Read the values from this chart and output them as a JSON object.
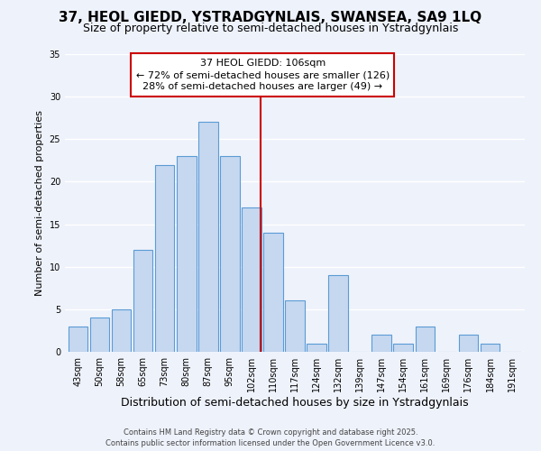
{
  "title": "37, HEOL GIEDD, YSTRADGYNLAIS, SWANSEA, SA9 1LQ",
  "subtitle": "Size of property relative to semi-detached houses in Ystradgynlais",
  "xlabel": "Distribution of semi-detached houses by size in Ystradgynlais",
  "ylabel": "Number of semi-detached properties",
  "bar_labels": [
    "43sqm",
    "50sqm",
    "58sqm",
    "65sqm",
    "73sqm",
    "80sqm",
    "87sqm",
    "95sqm",
    "102sqm",
    "110sqm",
    "117sqm",
    "124sqm",
    "132sqm",
    "139sqm",
    "147sqm",
    "154sqm",
    "161sqm",
    "169sqm",
    "176sqm",
    "184sqm",
    "191sqm"
  ],
  "bar_values": [
    3,
    4,
    5,
    12,
    22,
    23,
    27,
    23,
    17,
    14,
    6,
    1,
    9,
    0,
    2,
    1,
    3,
    0,
    2,
    1,
    0
  ],
  "bar_color": "#c5d8f0",
  "bar_edge_color": "#5b9bd5",
  "background_color": "#eef2fb",
  "grid_color": "#ffffff",
  "ylim": [
    0,
    35
  ],
  "yticks": [
    0,
    5,
    10,
    15,
    20,
    25,
    30,
    35
  ],
  "vline_x_index": 8.42,
  "vline_color": "#cc0000",
  "annotation_title": "37 HEOL GIEDD: 106sqm",
  "annotation_line1": "← 72% of semi-detached houses are smaller (126)",
  "annotation_line2": "28% of semi-detached houses are larger (49) →",
  "annotation_box_color": "#cc0000",
  "footer1": "Contains HM Land Registry data © Crown copyright and database right 2025.",
  "footer2": "Contains public sector information licensed under the Open Government Licence v3.0.",
  "title_fontsize": 11,
  "subtitle_fontsize": 9,
  "xlabel_fontsize": 9,
  "ylabel_fontsize": 8,
  "tick_fontsize": 7,
  "annotation_fontsize": 8,
  "footer_fontsize": 6
}
